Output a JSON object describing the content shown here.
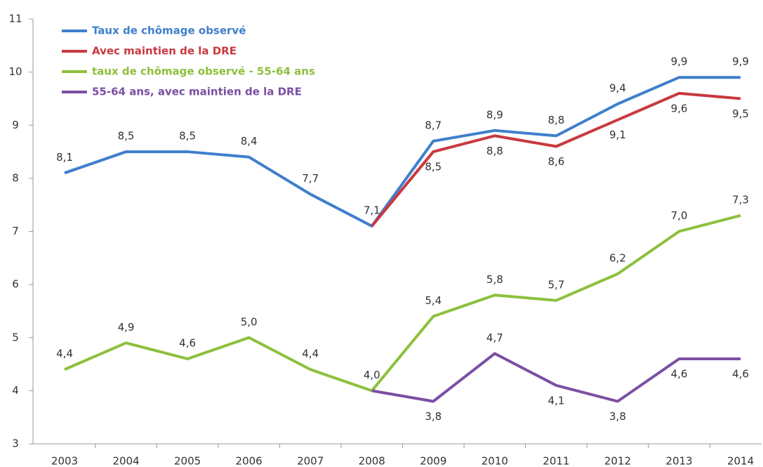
{
  "chart_data": {
    "type": "line",
    "categories": [
      "2003",
      "2004",
      "2005",
      "2006",
      "2007",
      "2008",
      "2009",
      "2010",
      "2011",
      "2012",
      "2013",
      "2014"
    ],
    "ylim": [
      3,
      11
    ],
    "yticks": [
      3,
      4,
      5,
      6,
      7,
      8,
      9,
      10,
      11
    ],
    "grid": false,
    "legend": "top-left",
    "series": [
      {
        "name": "Taux de chômage observé",
        "color": "#3f7fcc",
        "values": [
          8.1,
          8.5,
          8.5,
          8.4,
          7.7,
          7.1,
          8.7,
          8.9,
          8.8,
          9.4,
          9.9,
          9.9
        ],
        "value_labels": [
          "8,1",
          "8,5",
          "8,5",
          "8,4",
          "7,7",
          "7,1",
          "8,7",
          "8,9",
          "8,8",
          "9,4",
          "9,9",
          "9,9"
        ]
      },
      {
        "name": "Avec maintien de la DRE",
        "color": "#c8393f",
        "values": [
          null,
          null,
          null,
          null,
          null,
          7.1,
          8.5,
          8.8,
          8.6,
          9.1,
          9.6,
          9.5
        ],
        "value_labels": [
          null,
          null,
          null,
          null,
          null,
          null,
          "8,5",
          "8,8",
          "8,6",
          "9,1",
          "9,6",
          "9,5"
        ]
      },
      {
        "name": "taux de chômage observé - 55-64 ans",
        "color": "#8dc03c",
        "values": [
          4.4,
          4.9,
          4.6,
          5.0,
          4.4,
          4.0,
          5.4,
          5.8,
          5.7,
          6.2,
          7.0,
          7.3
        ],
        "value_labels": [
          "4,4",
          "4,9",
          "4,6",
          "5,0",
          "4,4",
          "4,0",
          "5,4",
          "5,8",
          "5,7",
          "6,2",
          "7,0",
          "7,3"
        ]
      },
      {
        "name": "55-64 ans, avec maintien de la DRE",
        "color": "#7b4fa3",
        "values": [
          null,
          null,
          null,
          null,
          null,
          4.0,
          3.8,
          4.7,
          4.1,
          3.8,
          4.6,
          4.6
        ],
        "value_labels": [
          null,
          null,
          null,
          null,
          null,
          null,
          "3,8",
          "4,7",
          "4,1",
          "3,8",
          "4,6",
          "4,6"
        ]
      }
    ]
  }
}
